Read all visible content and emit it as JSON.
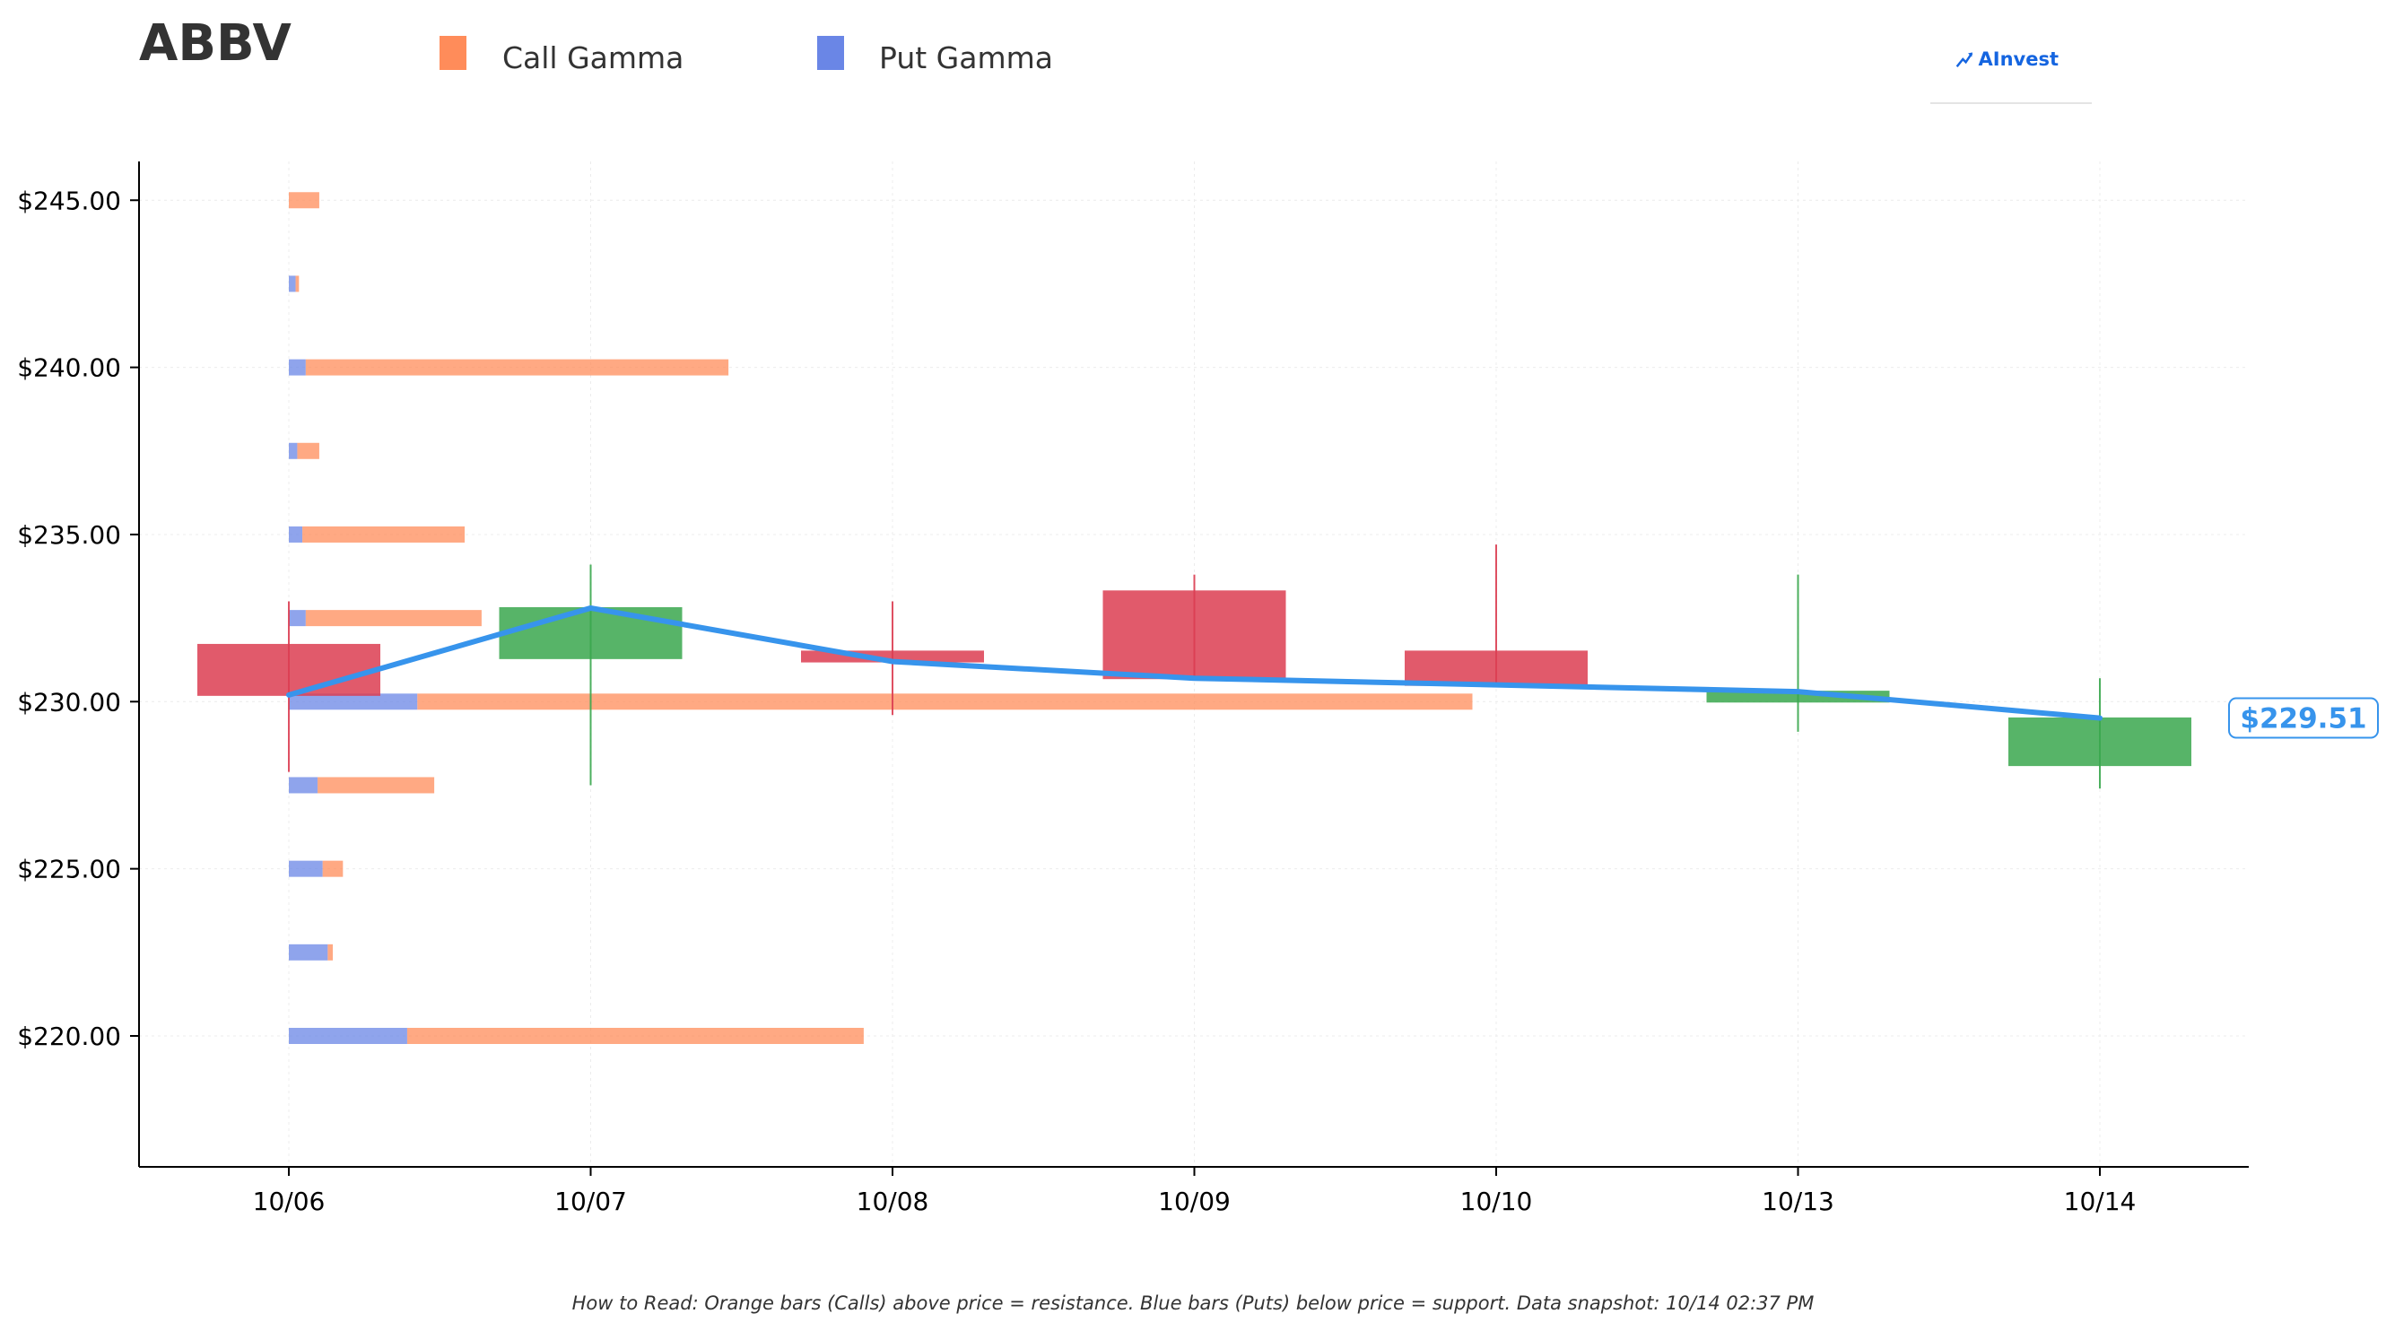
{
  "header": {
    "ticker": "ABBV",
    "legend": [
      {
        "label": "Call Gamma",
        "color": "#ff8c5a"
      },
      {
        "label": "Put Gamma",
        "color": "#6a86e6"
      }
    ],
    "logo_text": "AInvest"
  },
  "footer": {
    "note": "How to Read: Orange bars (Calls) above price = resistance. Blue bars (Puts) below price = support. Data snapshot: 10/14 02:37 PM"
  },
  "chart_data": {
    "type": "bar",
    "ylim": [
      216,
      246.2
    ],
    "yticks": [
      {
        "value": 245,
        "label": "$245.00"
      },
      {
        "value": 240,
        "label": "$240.00"
      },
      {
        "value": 235,
        "label": "$235.00"
      },
      {
        "value": 230,
        "label": "$230.00"
      },
      {
        "value": 225,
        "label": "$225.00"
      },
      {
        "value": 220,
        "label": "$220.00"
      }
    ],
    "categories": [
      "10/06",
      "10/07",
      "10/08",
      "10/09",
      "10/10",
      "10/13",
      "10/14"
    ],
    "grid": true,
    "candles": [
      {
        "date": "10/06",
        "open": 231.7,
        "close": 230.2,
        "high": 233.0,
        "low": 227.9
      },
      {
        "date": "10/07",
        "open": 231.3,
        "close": 232.8,
        "high": 234.1,
        "low": 227.5
      },
      {
        "date": "10/08",
        "open": 231.5,
        "close": 231.2,
        "high": 233.0,
        "low": 229.6
      },
      {
        "date": "10/09",
        "open": 233.3,
        "close": 230.7,
        "high": 233.8,
        "low": 230.7
      },
      {
        "date": "10/10",
        "open": 231.5,
        "close": 230.5,
        "high": 234.7,
        "low": 230.5
      },
      {
        "date": "10/13",
        "open": 230.0,
        "close": 230.3,
        "high": 233.8,
        "low": 229.1
      },
      {
        "date": "10/14",
        "open": 228.1,
        "close": 229.5,
        "high": 230.7,
        "low": 227.4
      }
    ],
    "price_line": {
      "x": [
        "10/06",
        "10/07",
        "10/08",
        "10/09",
        "10/10",
        "10/13",
        "10/14"
      ],
      "y": [
        230.2,
        232.8,
        231.2,
        230.7,
        230.5,
        230.3,
        229.51
      ]
    },
    "current_price_label": "$229.51",
    "gamma_series": [
      {
        "name": "Put Gamma",
        "strikes": [
          245,
          242.5,
          240,
          237.5,
          235,
          232.5,
          230,
          227.5,
          225,
          222.5,
          220
        ],
        "values": [
          0,
          0.2,
          0.5,
          0.25,
          0.4,
          0.5,
          3.8,
          0.85,
          1.0,
          1.15,
          3.5
        ]
      },
      {
        "name": "Call Gamma",
        "strikes": [
          245,
          242.5,
          240,
          237.5,
          235,
          232.5,
          230,
          227.5,
          225,
          222.5,
          220
        ],
        "values": [
          0.9,
          0.1,
          12.5,
          0.65,
          4.8,
          5.2,
          31.2,
          3.45,
          0.6,
          0.15,
          13.5
        ]
      }
    ],
    "colors": {
      "up": "#3aa84e",
      "down": "#dc3e52",
      "price_line": "#3794ec",
      "call": "#ff8c5a",
      "put": "#6a86e6"
    }
  }
}
